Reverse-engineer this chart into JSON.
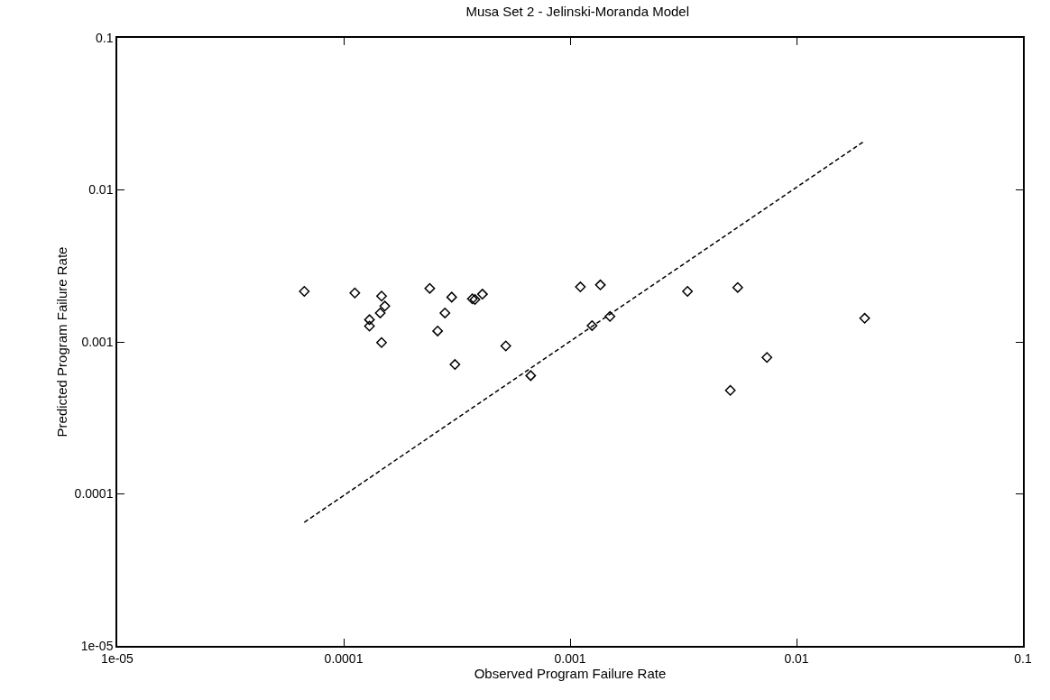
{
  "chart_data": {
    "type": "scatter",
    "title": "Musa Set 2 - Jelinski-Moranda Model",
    "xlabel": "Observed Program Failure Rate",
    "ylabel": "Predicted Program Failure Rate",
    "log": "xy",
    "grid": false,
    "marker": "diamond",
    "xlim": [
      1e-05,
      0.1
    ],
    "ylim": [
      1e-05,
      0.1
    ],
    "xticks": [
      {
        "value": 1e-05,
        "label": "1e-05"
      },
      0.0001,
      0.001,
      0.01,
      0.1
    ],
    "yticks": [
      {
        "value": 1e-05,
        "label": "1e-05"
      },
      0.0001,
      0.001,
      0.01,
      0.1
    ],
    "series": [
      {
        "color": "#000000",
        "x": [
          6.7e-05,
          0.000112,
          0.00013,
          0.00013,
          0.000147,
          0.000145,
          0.000152,
          0.000147,
          0.00024,
          0.00026,
          0.00028,
          0.0003,
          0.00031,
          0.00037,
          0.00038,
          0.00041,
          0.00052,
          0.00067,
          0.00111,
          0.00125,
          0.00136,
          0.0015,
          0.0033,
          0.0051,
          0.0055,
          0.0074,
          0.02
        ],
        "values": [
          0.00215,
          0.0021,
          0.0014,
          0.00127,
          0.002,
          0.00155,
          0.00172,
          0.00099,
          0.00225,
          0.00118,
          0.00155,
          0.00197,
          0.00071,
          0.00192,
          0.0019,
          0.00206,
          0.00094,
          0.0006,
          0.0023,
          0.00128,
          0.00237,
          0.00147,
          0.00215,
          0.00048,
          0.00228,
          0.00079,
          0.00143
        ]
      },
      {
        "type": "line",
        "color": "#000000",
        "line_style": "dashed",
        "marker": "none",
        "x": [
          6.7e-05,
          0.02
        ],
        "values": [
          6.5e-05,
          0.021
        ]
      }
    ]
  }
}
